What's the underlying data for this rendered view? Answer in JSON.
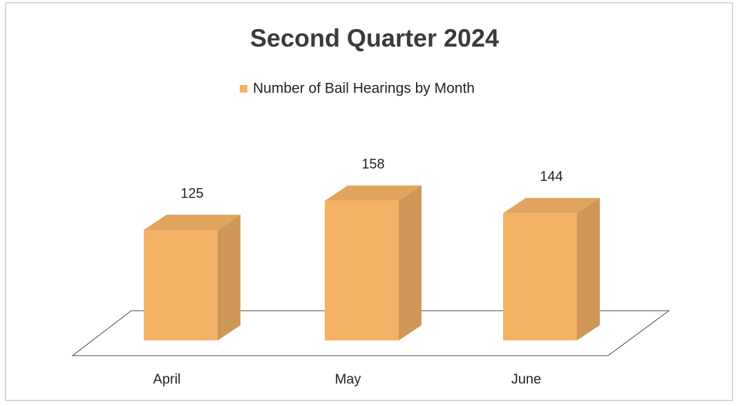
{
  "chart_data": {
    "type": "bar3d",
    "title": "Second Quarter 2024",
    "series": [
      {
        "name": "Number of Bail Hearings by Month",
        "color": "#f4b266",
        "values": [
          125,
          158,
          144
        ]
      }
    ],
    "categories": [
      "April",
      "May",
      "June"
    ]
  }
}
